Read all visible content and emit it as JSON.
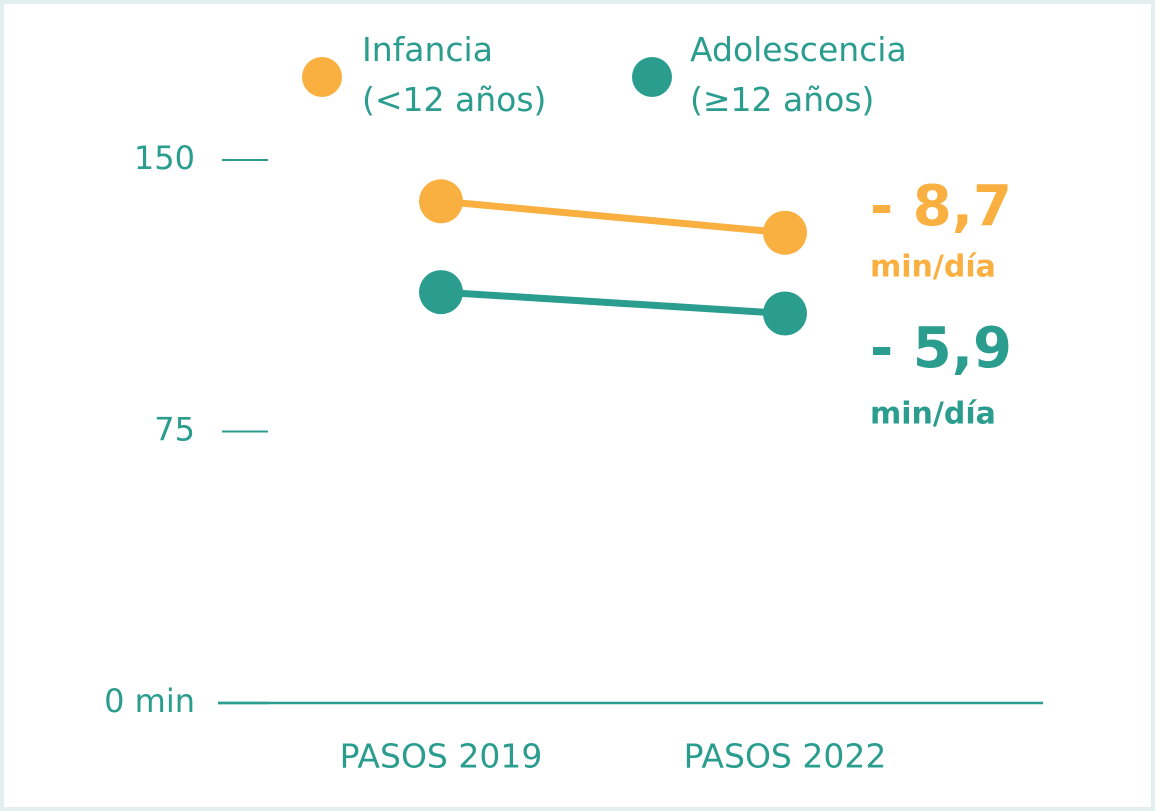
{
  "chart_data": {
    "type": "line",
    "categories": [
      "PASOS 2019",
      "PASOS 2022"
    ],
    "series": [
      {
        "name": "Infancia (<12 años)",
        "color": "#f9b041",
        "values": [
          138.6,
          129.9
        ],
        "annotation": "- 8,7",
        "annotation_unit": "min/día"
      },
      {
        "name": "Adolescencia (≥12 años)",
        "color": "#2a9d8f",
        "values": [
          113.5,
          107.6
        ],
        "annotation": "- 5,9",
        "annotation_unit": "min/día"
      }
    ],
    "ylim": [
      0,
      150
    ],
    "yticks": [
      {
        "value": 0,
        "label": "0 min"
      },
      75,
      150
    ],
    "axis_color": "#2a9d8f"
  }
}
